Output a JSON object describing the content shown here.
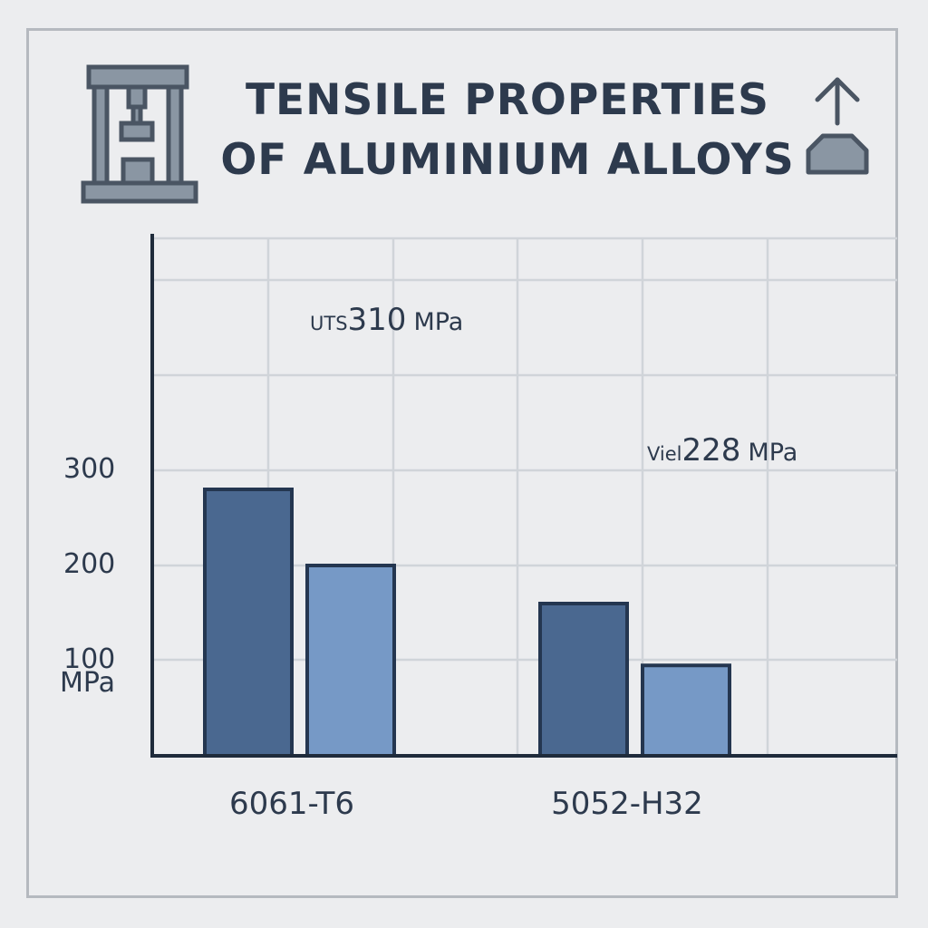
{
  "chart_data": {
    "type": "bar",
    "title_lines": [
      "TENSILE PROPERTIES",
      "OF ALUMINIUM ALLOYS"
    ],
    "ylabel": "MPa",
    "xlabel": "",
    "ylim": [
      0,
      300
    ],
    "yticks": [
      100,
      200,
      300
    ],
    "grid": true,
    "categories": [
      "6061-T6",
      "5052-H32"
    ],
    "series": [
      {
        "values": [
          280,
          160
        ],
        "color": "#4a6890"
      },
      {
        "values": [
          200,
          95
        ],
        "color": "#7699c6"
      }
    ],
    "annotations": [
      {
        "prefix": "UTS",
        "value": "310",
        "unit": "MPa",
        "category_index": 0
      },
      {
        "prefix": "Viel",
        "value": "228",
        "unit": "MPa",
        "category_index": 1
      }
    ]
  },
  "icons": {
    "left": "tensile-testing-machine-icon",
    "right": "load-arrow-icon"
  },
  "colors": {
    "background": "#ecedef",
    "text": "#2d3a4d",
    "grid": "#d0d4d9",
    "axis": "#1f2b3b",
    "icon_fill": "#8a96a3",
    "icon_stroke": "#4a5563"
  }
}
